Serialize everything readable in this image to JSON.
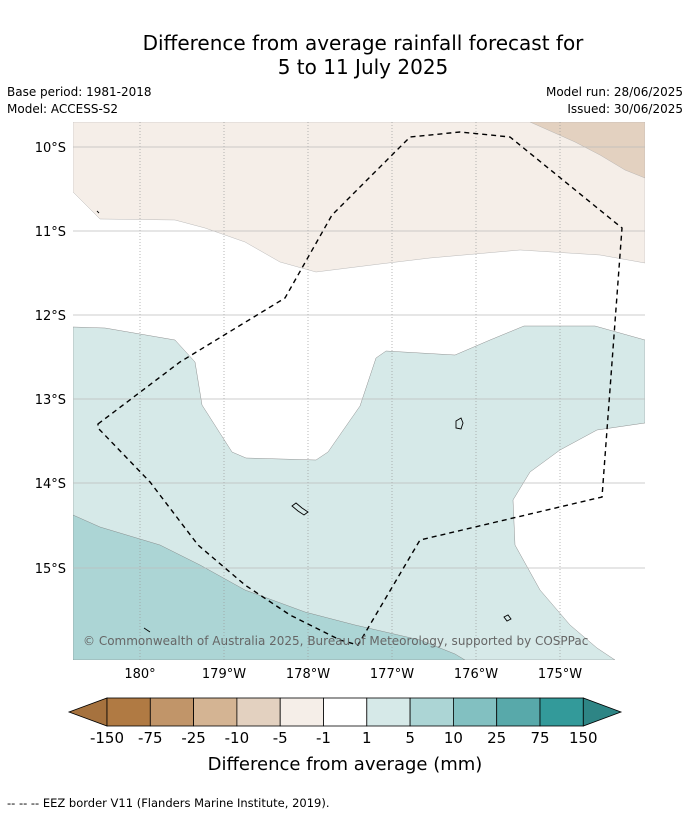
{
  "title": {
    "line1": "Difference from average rainfall forecast for",
    "line2": "5 to 11 July 2025"
  },
  "meta": {
    "base_period": "Base period: 1981-2018",
    "model": "Model: ACCESS-S2",
    "model_run": "Model run: 28/06/2025",
    "issued": "Issued: 30/06/2025"
  },
  "map": {
    "lat_labels": [
      "10°S",
      "11°S",
      "12°S",
      "13°S",
      "14°S",
      "15°S"
    ],
    "lon_labels": [
      "180°",
      "179°W",
      "178°W",
      "177°W",
      "176°W",
      "175°W"
    ],
    "copyright": "© Commonwealth of Australia 2025, Bureau of Meteorology, supported by COSPPac",
    "colors": {
      "brown_light": "#e3d1c0",
      "brown_pale": "#f5eee8",
      "teal_pale": "#d6e9e8",
      "teal_light": "#acd5d5"
    }
  },
  "colorbar": {
    "title": "Difference from average (mm)",
    "ticks": [
      "-150",
      "-75",
      "-25",
      "-10",
      "-5",
      "-1",
      "1",
      "5",
      "10",
      "25",
      "75",
      "150"
    ],
    "colors": [
      "#a6723e",
      "#b07a43",
      "#c19569",
      "#d4b493",
      "#e3d1c0",
      "#f5eee8",
      "#ffffff",
      "#d6e9e8",
      "#acd5d5",
      "#82c0c1",
      "#58a9aa",
      "#339a9a",
      "#2e8585"
    ]
  },
  "footer": "--  --  -- EEZ border V11 (Flanders Marine Institute, 2019)."
}
